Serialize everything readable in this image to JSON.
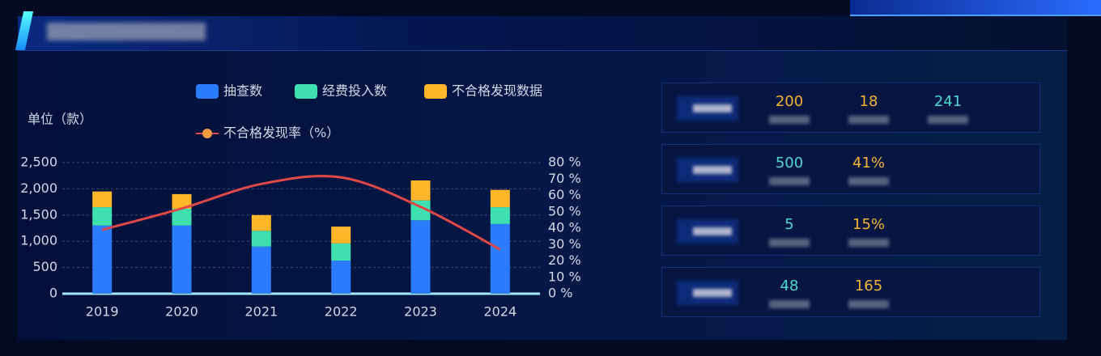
{
  "chart_data": {
    "type": "bar-line",
    "unit_label": "单位（款）",
    "categories": [
      "2019",
      "2020",
      "2021",
      "2022",
      "2023",
      "2024"
    ],
    "series": [
      {
        "name": "抽查数",
        "color": "#2b7bff",
        "values": [
          1300,
          1300,
          900,
          630,
          1400,
          1330
        ]
      },
      {
        "name": "经费投入数",
        "color": "#3fe0b0",
        "values": [
          350,
          320,
          300,
          330,
          380,
          320
        ]
      },
      {
        "name": "不合格发现数据",
        "color": "#ffb628",
        "values": [
          300,
          280,
          300,
          320,
          380,
          330
        ]
      },
      {
        "name": "不合格发现率（%）",
        "color": "#e04848",
        "type": "line",
        "axis": "y2",
        "values": [
          39,
          52,
          67,
          71,
          53,
          27
        ]
      }
    ],
    "ylim": [
      0,
      2500
    ],
    "yticks": [
      0,
      500,
      {
        "value": 1000,
        "label": "1,000"
      },
      {
        "value": 1500,
        "label": "1,500"
      },
      {
        "value": 2000,
        "label": "2,000"
      },
      {
        "value": 2500,
        "label": "2,500"
      }
    ],
    "y2lim": [
      0,
      80
    ],
    "y2ticks": [
      {
        "value": 0,
        "label": "0 %"
      },
      {
        "value": 10,
        "label": "10 %"
      },
      {
        "value": 20,
        "label": "20 %"
      },
      {
        "value": 30,
        "label": "30 %"
      },
      {
        "value": 40,
        "label": "40 %"
      },
      {
        "value": 50,
        "label": "50 %"
      },
      {
        "value": 60,
        "label": "60 %"
      },
      {
        "value": 70,
        "label": "70 %"
      },
      {
        "value": 80,
        "label": "80 %"
      }
    ],
    "grid": true
  },
  "stats": [
    {
      "items": [
        {
          "text": "200",
          "color": "#f5b23a"
        },
        {
          "text": "18",
          "color": "#f5b23a"
        },
        {
          "text": "241",
          "color": "#4fd8d0"
        }
      ]
    },
    {
      "items": [
        {
          "text": "500",
          "color": "#4fd8d0"
        },
        {
          "text": "41%",
          "color": "#f5b23a"
        }
      ]
    },
    {
      "items": [
        {
          "text": "5",
          "color": "#4fd8d0"
        },
        {
          "text": "15%",
          "color": "#f5b23a"
        }
      ]
    },
    {
      "items": [
        {
          "text": "48",
          "color": "#4fd8d0"
        },
        {
          "text": "165",
          "color": "#f5b23a"
        }
      ]
    }
  ]
}
